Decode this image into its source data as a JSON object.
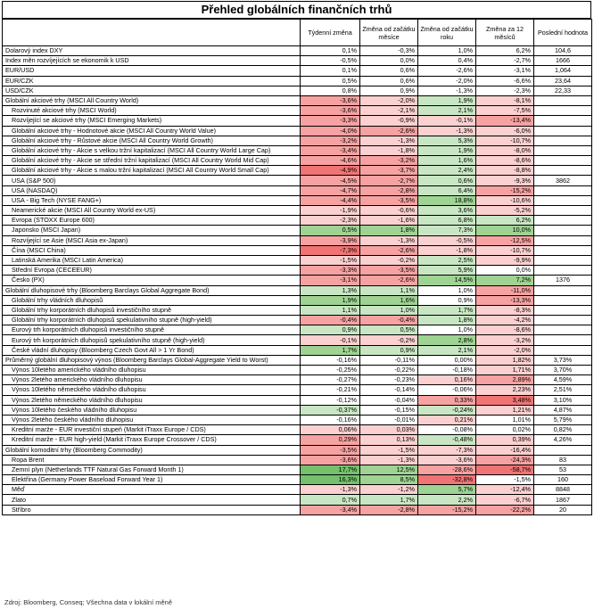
{
  "title": "Přehled globálních finančních trhů",
  "headers": [
    "",
    "Týdenní změna",
    "Změna od začátku měsíce",
    "Změna od začátku roku",
    "Změna za 12 měsíců",
    "Poslední hodnota"
  ],
  "source": "Zdroj: Bloomberg, Conseq; Všechna data v lokální měně",
  "colors": {
    "pos1": "#c9e6c4",
    "pos2": "#9fd393",
    "pos3": "#74c06c",
    "neg1": "#fbd0d0",
    "neg2": "#f7a2a2",
    "neg3": "#f07474"
  },
  "rows": [
    {
      "label": "Dolarový index DXY",
      "v": [
        "0,1%",
        "-0,3%",
        "1,0%",
        "6,2%",
        "104,6"
      ],
      "c": [
        "",
        "",
        "",
        "",
        ""
      ],
      "sec": true
    },
    {
      "label": "Index měn rozvíjejících se ekonomik k USD",
      "v": [
        "-0,5%",
        "0,0%",
        "0,4%",
        "-2,7%",
        "1666"
      ],
      "c": [
        "",
        "",
        "",
        "",
        ""
      ]
    },
    {
      "label": "EUR/USD",
      "v": [
        "0,1%",
        "0,6%",
        "-2,6%",
        "-3,1%",
        "1,064"
      ],
      "c": [
        "",
        "",
        "",
        "",
        ""
      ]
    },
    {
      "label": "EUR/CZK",
      "v": [
        "0,5%",
        "0,6%",
        "-2,0%",
        "-6,6%",
        "23,64"
      ],
      "c": [
        "",
        "",
        "",
        "",
        ""
      ]
    },
    {
      "label": "USD/CZK",
      "v": [
        "0,8%",
        "0,9%",
        "-1,3%",
        "-2,3%",
        "22,33"
      ],
      "c": [
        "",
        "",
        "",
        "",
        ""
      ]
    },
    {
      "label": "Globální akciové trhy (MSCI All Country World)",
      "v": [
        "-3,6%",
        "-2,0%",
        "1,9%",
        "-8,1%",
        ""
      ],
      "c": [
        "neg2",
        "neg1",
        "pos1",
        "neg1",
        ""
      ],
      "sec": true
    },
    {
      "label": "Rozvinuté akciové trhy (MSCI World)",
      "v": [
        "-3,6%",
        "-2,1%",
        "2,1%",
        "-7,5%",
        ""
      ],
      "c": [
        "neg2",
        "neg1",
        "pos1",
        "neg1",
        ""
      ],
      "ind": true
    },
    {
      "label": "Rozvíjející se akciové trhy (MSCI Emerging Markets)",
      "v": [
        "-3,3%",
        "-0,9%",
        "-0,1%",
        "-13,4%",
        ""
      ],
      "c": [
        "neg2",
        "neg1",
        "neg1",
        "neg2",
        ""
      ],
      "ind": true
    },
    {
      "label": "Globální akciové trhy - Hodnotové akcie (MSCI All Country World Value)",
      "v": [
        "-4,0%",
        "-2,6%",
        "-1,3%",
        "-6,0%",
        ""
      ],
      "c": [
        "neg2",
        "neg2",
        "neg1",
        "neg1",
        ""
      ],
      "ind": true
    },
    {
      "label": "Globální akciové trhy - Růstové akcie (MSCI All Country World Growth)",
      "v": [
        "-3,2%",
        "-1,3%",
        "5,3%",
        "-10,7%",
        ""
      ],
      "c": [
        "neg2",
        "neg1",
        "pos1",
        "neg1",
        ""
      ],
      "ind": true
    },
    {
      "label": "Globální akciové trhy - Akcie s velkou tržní kapitalizací (MSCI All Country World Large Cap)",
      "v": [
        "-3,4%",
        "-1,8%",
        "1,9%",
        "-8,0%",
        ""
      ],
      "c": [
        "neg2",
        "neg1",
        "pos1",
        "neg1",
        ""
      ],
      "ind": true
    },
    {
      "label": "Globální akciové trhy - Akcie se střední tržní kapitalizací (MSCI All Country World Mid Cap)",
      "v": [
        "-4,6%",
        "-3,2%",
        "1,6%",
        "-8,6%",
        ""
      ],
      "c": [
        "neg2",
        "neg2",
        "pos1",
        "neg1",
        ""
      ],
      "ind": true
    },
    {
      "label": "Globální akciové trhy - Akcie s malou tržní kapitalizací (MSCI All Country World Small Cap)",
      "v": [
        "-4,9%",
        "-3,7%",
        "2,4%",
        "-8,8%",
        ""
      ],
      "c": [
        "neg3",
        "neg2",
        "pos1",
        "neg1",
        ""
      ],
      "ind": true
    },
    {
      "label": "USA (S&P 500)",
      "v": [
        "-4,5%",
        "-2,7%",
        "0,6%",
        "-9,3%",
        "3862"
      ],
      "c": [
        "neg2",
        "neg2",
        "pos1",
        "neg1",
        ""
      ],
      "ind": true
    },
    {
      "label": "USA (NASDAQ)",
      "v": [
        "-4,7%",
        "-2,8%",
        "6,4%",
        "-15,2%",
        ""
      ],
      "c": [
        "neg2",
        "neg2",
        "pos1",
        "neg2",
        ""
      ],
      "ind": true
    },
    {
      "label": "USA - Big Tech (NYSE FANG+)",
      "v": [
        "-4,4%",
        "-3,5%",
        "18,8%",
        "-10,6%",
        ""
      ],
      "c": [
        "neg2",
        "neg2",
        "pos2",
        "neg1",
        ""
      ],
      "ind": true
    },
    {
      "label": "Neamerické akcie (MSCI All Country World ex-US)",
      "v": [
        "-1,9%",
        "-0,6%",
        "3,6%",
        "-5,2%",
        ""
      ],
      "c": [
        "neg1",
        "neg1",
        "pos1",
        "neg1",
        ""
      ],
      "ind": true
    },
    {
      "label": "Evropa (STOXX Europe 600)",
      "v": [
        "-2,3%",
        "-1,6%",
        "6,8%",
        "6,2%",
        ""
      ],
      "c": [
        "neg1",
        "neg1",
        "pos1",
        "pos1",
        ""
      ],
      "ind": true
    },
    {
      "label": "Japonsko (MSCI Japan)",
      "v": [
        "0,5%",
        "1,8%",
        "7,3%",
        "10,0%",
        ""
      ],
      "c": [
        "pos2",
        "pos2",
        "pos1",
        "pos2",
        ""
      ],
      "ind": true
    },
    {
      "label": "Rozvíjející se Asie (MSCI Asia ex-Japan)",
      "v": [
        "-3,9%",
        "-1,3%",
        "-0,5%",
        "-12,5%",
        ""
      ],
      "c": [
        "neg2",
        "neg1",
        "neg1",
        "neg2",
        ""
      ],
      "ind": true
    },
    {
      "label": "Čína (MSCI China)",
      "v": [
        "-7,3%",
        "-2,6%",
        "-1,8%",
        "-10,7%",
        ""
      ],
      "c": [
        "neg3",
        "neg2",
        "neg1",
        "neg1",
        ""
      ],
      "ind": true
    },
    {
      "label": "Latinská Amerika (MSCI Latin America)",
      "v": [
        "-1,5%",
        "-0,2%",
        "2,5%",
        "-9,9%",
        ""
      ],
      "c": [
        "neg1",
        "neg1",
        "pos1",
        "neg1",
        ""
      ],
      "ind": true
    },
    {
      "label": "Střední Evropa (CECEEUR)",
      "v": [
        "-3,3%",
        "-3,5%",
        "5,9%",
        "0,0%",
        ""
      ],
      "c": [
        "neg2",
        "neg2",
        "pos1",
        "",
        ""
      ],
      "ind": true
    },
    {
      "label": "Česko (PX)",
      "v": [
        "-3,1%",
        "-2,6%",
        "14,5%",
        "7,2%",
        "1376"
      ],
      "c": [
        "neg2",
        "neg2",
        "pos2",
        "pos2",
        ""
      ],
      "ind": true
    },
    {
      "label": "Globální dluhopisové trhy (Bloomberg Barclays Global Aggregate Bond)",
      "v": [
        "1,3%",
        "1,1%",
        "1,0%",
        "-11,0%",
        ""
      ],
      "c": [
        "pos1",
        "pos1",
        "",
        "neg2",
        ""
      ],
      "sec": true
    },
    {
      "label": "Globální trhy vládních dluhopisů",
      "v": [
        "1,9%",
        "1,6%",
        "0,9%",
        "-13,3%",
        ""
      ],
      "c": [
        "pos2",
        "pos2",
        "",
        "neg2",
        ""
      ],
      "ind": true
    },
    {
      "label": "Globální trhy korporátních dluhopisů investičního stupně",
      "v": [
        "1,1%",
        "1,0%",
        "1,7%",
        "-8,3%",
        ""
      ],
      "c": [
        "pos1",
        "pos1",
        "pos1",
        "neg1",
        ""
      ],
      "ind": true
    },
    {
      "label": "Globální trhy korporátních dluhopisů spekulativního stupně (high-yield)",
      "v": [
        "-0,4%",
        "-0,4%",
        "1,8%",
        "-4,2%",
        ""
      ],
      "c": [
        "neg2",
        "neg2",
        "pos1",
        "neg1",
        ""
      ],
      "ind": true
    },
    {
      "label": "Eurový trh korporátních dluhopisů investičního stupně",
      "v": [
        "0,9%",
        "0,5%",
        "1,0%",
        "-8,6%",
        ""
      ],
      "c": [
        "pos1",
        "pos1",
        "",
        "neg1",
        ""
      ],
      "ind": true
    },
    {
      "label": "Eurový trh korporátních dluhopisů spekulativního stupně (high-yield)",
      "v": [
        "-0,1%",
        "-0,2%",
        "2,8%",
        "-3,2%",
        ""
      ],
      "c": [
        "neg1",
        "neg1",
        "pos2",
        "neg1",
        ""
      ],
      "ind": true
    },
    {
      "label": "České vládní dluhopisy (Bloomberg Czech Govt All > 1 Yr Bond)",
      "v": [
        "1,7%",
        "0,9%",
        "2,1%",
        "-2,0%",
        ""
      ],
      "c": [
        "pos2",
        "pos1",
        "pos1",
        "neg1",
        ""
      ],
      "ind": true
    },
    {
      "label": "Průměrný globální dluhopisový výnos (Bloomberg Barclays Global-Aggregate Yield to Worst)",
      "v": [
        "-0,16%",
        "-0,11%",
        "0,00%",
        "1,82%",
        "3,73%"
      ],
      "c": [
        "",
        "",
        "",
        "neg1",
        ""
      ],
      "sec": true
    },
    {
      "label": "Výnos 10letého amerického vládního dluhopisu",
      "v": [
        "-0,25%",
        "-0,22%",
        "-0,18%",
        "1,71%",
        "3,70%"
      ],
      "c": [
        "",
        "",
        "",
        "neg1",
        ""
      ],
      "ind": true
    },
    {
      "label": "Výnos 2letého amerického vládního dluhopisu",
      "v": [
        "-0,27%",
        "-0,23%",
        "0,16%",
        "2,89%",
        "4,59%"
      ],
      "c": [
        "",
        "",
        "neg1",
        "neg2",
        ""
      ],
      "ind": true
    },
    {
      "label": "Výnos 10letého německého vládního dluhopisu",
      "v": [
        "-0,21%",
        "-0,14%",
        "-0,06%",
        "2,23%",
        "2,51%"
      ],
      "c": [
        "",
        "",
        "",
        "neg1",
        ""
      ],
      "ind": true
    },
    {
      "label": "Výnos 2letého německého vládního dluhopisu",
      "v": [
        "-0,12%",
        "-0,04%",
        "0,33%",
        "3,48%",
        "3,10%"
      ],
      "c": [
        "",
        "",
        "neg2",
        "neg3",
        ""
      ],
      "ind": true
    },
    {
      "label": "Výnos 10letého českého vládního dluhopisu",
      "v": [
        "-0,37%",
        "-0,15%",
        "-0,24%",
        "1,21%",
        "4,87%"
      ],
      "c": [
        "pos1",
        "",
        "pos1",
        "neg1",
        ""
      ],
      "ind": true
    },
    {
      "label": "Výnos 2letého českého vládního dluhopisu",
      "v": [
        "-0,16%",
        "-0,01%",
        "0,21%",
        "1,01%",
        "5,79%"
      ],
      "c": [
        "",
        "",
        "neg1",
        "",
        ""
      ],
      "ind": true
    },
    {
      "label": "Kreditní marže - EUR investiční stupeň (Markit iTraxx Europe / CDS)",
      "v": [
        "0,06%",
        "0,03%",
        "-0,08%",
        "0,02%",
        "0,82%"
      ],
      "c": [
        "neg1",
        "neg1",
        "",
        "",
        ""
      ],
      "ind": true
    },
    {
      "label": "Kreditní marže - EUR high-yield (Markit iTraxx Europe Crossover / CDS)",
      "v": [
        "0,29%",
        "0,13%",
        "-0,48%",
        "0,39%",
        "4,26%"
      ],
      "c": [
        "neg2",
        "neg1",
        "pos1",
        "neg1",
        ""
      ],
      "ind": true
    },
    {
      "label": "Globální komoditní trhy (Bloomberg Commodity)",
      "v": [
        "-3,5%",
        "-1,5%",
        "-7,3%",
        "-16,4%",
        ""
      ],
      "c": [
        "neg2",
        "neg1",
        "neg1",
        "neg1",
        ""
      ],
      "sec": true
    },
    {
      "label": "Ropa Brent",
      "v": [
        "-3,6%",
        "-1,3%",
        "-3,6%",
        "-24,3%",
        "83"
      ],
      "c": [
        "neg2",
        "neg1",
        "neg1",
        "neg2",
        ""
      ],
      "ind": true
    },
    {
      "label": "Zemní plyn (Netherlands TTF Natural Gas Forward Month 1)",
      "v": [
        "17,7%",
        "12,5%",
        "-28,6%",
        "-58,7%",
        "53"
      ],
      "c": [
        "pos3",
        "pos2",
        "neg2",
        "neg3",
        ""
      ],
      "ind": true
    },
    {
      "label": "Elektřina (Germany Power Baseload Forward Year 1)",
      "v": [
        "16,3%",
        "8,5%",
        "-32,8%",
        "-1,5%",
        "160"
      ],
      "c": [
        "pos3",
        "pos2",
        "neg3",
        "",
        ""
      ],
      "ind": true
    },
    {
      "label": "Měď",
      "v": [
        "-1,3%",
        "-1,2%",
        "5,7%",
        "-12,4%",
        "8848"
      ],
      "c": [
        "neg1",
        "neg1",
        "pos2",
        "neg1",
        ""
      ],
      "ind": true
    },
    {
      "label": "Zlato",
      "v": [
        "0,7%",
        "1,7%",
        "2,2%",
        "-6,7%",
        "1867"
      ],
      "c": [
        "pos1",
        "pos1",
        "pos1",
        "neg1",
        ""
      ],
      "ind": true
    },
    {
      "label": "Stříbro",
      "v": [
        "-3,4%",
        "-2,8%",
        "-15,2%",
        "-22,2%",
        "20"
      ],
      "c": [
        "neg2",
        "neg2",
        "neg2",
        "neg2",
        ""
      ],
      "ind": true
    }
  ]
}
